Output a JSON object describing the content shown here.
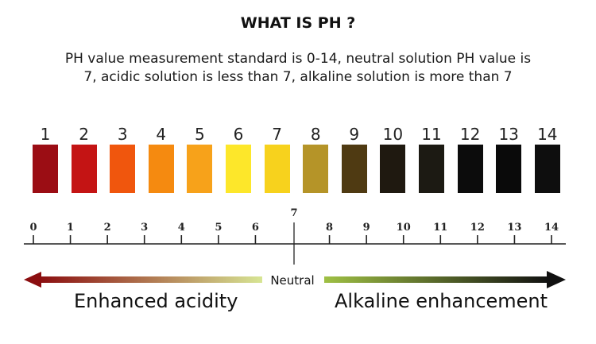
{
  "title": "WHAT IS PH ?",
  "description": "PH value measurement standard is 0-14, neutral solution PH value is 7, acidic solution is less than 7, alkaline solution is more than 7",
  "swatches": [
    {
      "label": "1",
      "color": "#9b0d14"
    },
    {
      "label": "2",
      "color": "#c41414"
    },
    {
      "label": "3",
      "color": "#f0560d"
    },
    {
      "label": "4",
      "color": "#f58a10"
    },
    {
      "label": "5",
      "color": "#f7a21a"
    },
    {
      "label": "6",
      "color": "#fde72a"
    },
    {
      "label": "7",
      "color": "#f7d21d"
    },
    {
      "label": "8",
      "color": "#b59428"
    },
    {
      "label": "9",
      "color": "#4f3a12"
    },
    {
      "label": "10",
      "color": "#1f1910"
    },
    {
      "label": "11",
      "color": "#1c1a13"
    },
    {
      "label": "12",
      "color": "#0c0c0c"
    },
    {
      "label": "13",
      "color": "#0a0a0a"
    },
    {
      "label": "14",
      "color": "#0e0e0e"
    }
  ],
  "scale": [
    "0",
    "1",
    "2",
    "3",
    "4",
    "5",
    "6",
    "7",
    "8",
    "9",
    "10",
    "11",
    "12",
    "13",
    "14"
  ],
  "neutral_label": "Neutral",
  "acid_caption": "Enhanced acidity",
  "alkaline_caption": "Alkaline enhancement",
  "colors": {
    "acid_start": "#8b0e10",
    "acid_end": "#d7e594",
    "alkaline_start": "#9fc044",
    "alkaline_end": "#111111"
  }
}
